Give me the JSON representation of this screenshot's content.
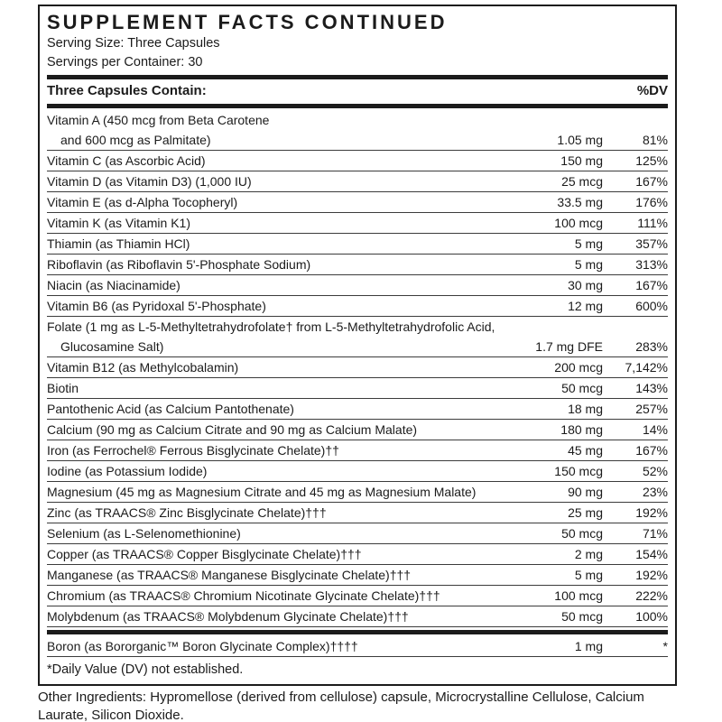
{
  "header": {
    "title": "SUPPLEMENT FACTS CONTINUED",
    "serving_size": "Serving Size: Three Capsules",
    "servings_per_container": "Servings per Container: 30"
  },
  "table": {
    "contain_label": "Three Capsules Contain:",
    "dv_label": "%DV",
    "rows": [
      {
        "name": "Vitamin A (450 mcg from Beta Carotene",
        "name2": "and 600 mcg as Palmitate)",
        "amount": "1.05 mg",
        "dv": "81%"
      },
      {
        "name": "Vitamin C (as Ascorbic Acid)",
        "amount": "150 mg",
        "dv": "125%"
      },
      {
        "name": "Vitamin D (as Vitamin D3) (1,000 IU)",
        "amount": "25 mcg",
        "dv": "167%"
      },
      {
        "name": "Vitamin E (as d-Alpha Tocopheryl)",
        "amount": "33.5 mg",
        "dv": "176%"
      },
      {
        "name": "Vitamin K (as Vitamin K1)",
        "amount": "100 mcg",
        "dv": "111%"
      },
      {
        "name": "Thiamin (as Thiamin HCl)",
        "amount": "5 mg",
        "dv": "357%"
      },
      {
        "name": "Riboflavin (as Riboflavin 5'-Phosphate Sodium)",
        "amount": "5 mg",
        "dv": "313%"
      },
      {
        "name": "Niacin (as Niacinamide)",
        "amount": "30 mg",
        "dv": "167%"
      },
      {
        "name": "Vitamin B6 (as Pyridoxal 5'-Phosphate)",
        "amount": "12 mg",
        "dv": "600%"
      },
      {
        "name": "Folate (1 mg as L-5-Methyltetrahydrofolate† from L-5-Methyltetrahydrofolic Acid,",
        "name2": "Glucosamine Salt)",
        "amount": "1.7 mg DFE",
        "dv": "283%"
      },
      {
        "name": "Vitamin B12 (as Methylcobalamin)",
        "amount": "200 mcg",
        "dv": "7,142%"
      },
      {
        "name": "Biotin",
        "amount": "50 mcg",
        "dv": "143%"
      },
      {
        "name": "Pantothenic Acid (as Calcium Pantothenate)",
        "amount": "18 mg",
        "dv": "257%"
      },
      {
        "name": "Calcium (90 mg as Calcium Citrate and 90 mg as Calcium Malate)",
        "amount": "180 mg",
        "dv": "14%"
      },
      {
        "name": "Iron (as Ferrochel® Ferrous Bisglycinate Chelate)††",
        "amount": "45 mg",
        "dv": "167%"
      },
      {
        "name": "Iodine (as Potassium Iodide)",
        "amount": "150 mcg",
        "dv": "52%"
      },
      {
        "name": "Magnesium (45 mg as Magnesium Citrate and 45 mg as Magnesium Malate)",
        "amount": "90 mg",
        "dv": "23%"
      },
      {
        "name": "Zinc (as TRAACS® Zinc Bisglycinate Chelate)†††",
        "amount": "25 mg",
        "dv": "192%"
      },
      {
        "name": "Selenium (as L-Selenomethionine)",
        "amount": "50 mcg",
        "dv": "71%"
      },
      {
        "name": "Copper (as TRAACS® Copper Bisglycinate Chelate)†††",
        "amount": "2 mg",
        "dv": "154%"
      },
      {
        "name": "Manganese (as TRAACS® Manganese Bisglycinate Chelate)†††",
        "amount": "5 mg",
        "dv": "192%"
      },
      {
        "name": "Chromium (as TRAACS® Chromium Nicotinate Glycinate Chelate)†††",
        "amount": "100 mcg",
        "dv": "222%"
      },
      {
        "name": "Molybdenum (as TRAACS® Molybdenum Glycinate Chelate)†††",
        "amount": "50 mcg",
        "dv": "100%"
      }
    ],
    "boron_row": {
      "name": "Boron (as Bororganic™ Boron Glycinate Complex)††††",
      "amount": "1 mg",
      "dv": "*"
    },
    "dv_footnote": "*Daily Value (DV) not established."
  },
  "other_ingredients": "Other Ingredients: Hypromellose (derived from cellulose) capsule, Microcrystalline Cellulose, Calcium Laurate, Silicon Dioxide."
}
